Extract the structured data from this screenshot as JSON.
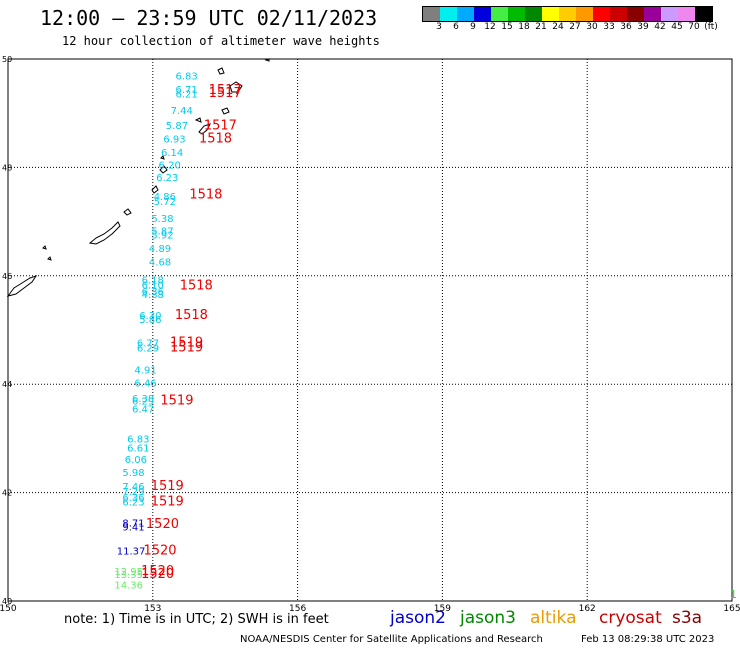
{
  "header": {
    "title": "12:00 — 23:59 UTC 02/11/2023",
    "subtitle": "12 hour collection of altimeter wave heights"
  },
  "colorbar": {
    "colors": [
      "#7f7f7f",
      "#00eeee",
      "#00aaff",
      "#0000dd",
      "#44ee44",
      "#00bb00",
      "#008800",
      "#ffff00",
      "#ffcc00",
      "#ff9900",
      "#ff0000",
      "#cc0000",
      "#880000",
      "#990099",
      "#cc99ff",
      "#ee88ee",
      "#000000"
    ],
    "ticks": [
      "3",
      "6",
      "9",
      "12",
      "15",
      "18",
      "21",
      "24",
      "27",
      "30",
      "33",
      "36",
      "39",
      "42",
      "45",
      "70",
      "(ft)"
    ]
  },
  "chart_data": {
    "type": "scatter",
    "title": "12 hour collection of altimeter wave heights",
    "xlim": [
      150,
      165
    ],
    "ylim": [
      40,
      50
    ],
    "x_ticks": [
      "150",
      "153",
      "156",
      "159",
      "162",
      "165"
    ],
    "y_ticks": [
      "40",
      "42",
      "44",
      "46",
      "48",
      "50"
    ],
    "grid": true,
    "series": [
      {
        "name": "jason3 (SWH ft)",
        "color_key": "swh",
        "points": [
          {
            "x": 153.7,
            "y": 49.7,
            "label": "6.83",
            "color": "#00ccee"
          },
          {
            "x": 153.7,
            "y": 49.45,
            "label": "6.71",
            "color": "#00ccee"
          },
          {
            "x": 153.7,
            "y": 49.36,
            "label": "6.21",
            "color": "#00ccee"
          },
          {
            "x": 153.6,
            "y": 49.06,
            "label": "7.44",
            "color": "#00ccee"
          },
          {
            "x": 153.5,
            "y": 48.78,
            "label": "5.87",
            "color": "#00ccee"
          },
          {
            "x": 153.45,
            "y": 48.53,
            "label": "6.93",
            "color": "#00ccee"
          },
          {
            "x": 153.4,
            "y": 48.28,
            "label": "6.14",
            "color": "#00ccee"
          },
          {
            "x": 153.35,
            "y": 48.05,
            "label": "6.20",
            "color": "#00ccee"
          },
          {
            "x": 153.3,
            "y": 47.82,
            "label": "6.23",
            "color": "#00ccee"
          },
          {
            "x": 153.25,
            "y": 47.47,
            "label": "4.86",
            "color": "#00ccee"
          },
          {
            "x": 153.25,
            "y": 47.38,
            "label": "5.72",
            "color": "#00ccee"
          },
          {
            "x": 153.2,
            "y": 47.07,
            "label": "5.38",
            "color": "#00ccee"
          },
          {
            "x": 153.2,
            "y": 46.84,
            "label": "5.87",
            "color": "#00ccee"
          },
          {
            "x": 153.2,
            "y": 46.76,
            "label": "5.92",
            "color": "#00ccee"
          },
          {
            "x": 153.15,
            "y": 46.51,
            "label": "4.89",
            "color": "#00ccee"
          },
          {
            "x": 153.15,
            "y": 46.26,
            "label": "4.68",
            "color": "#00ccee"
          },
          {
            "x": 153.0,
            "y": 45.93,
            "label": "6.18",
            "color": "#00ccee"
          },
          {
            "x": 153.0,
            "y": 45.84,
            "label": "6.10",
            "color": "#00ccee"
          },
          {
            "x": 153.0,
            "y": 45.72,
            "label": "6.36",
            "color": "#00ccee"
          },
          {
            "x": 153.0,
            "y": 45.66,
            "label": "4.38",
            "color": "#00ccee"
          },
          {
            "x": 152.95,
            "y": 45.28,
            "label": "6.30",
            "color": "#00ccee"
          },
          {
            "x": 152.95,
            "y": 45.2,
            "label": "5.86",
            "color": "#00ccee"
          },
          {
            "x": 152.9,
            "y": 44.77,
            "label": "6.77",
            "color": "#00ccee"
          },
          {
            "x": 152.9,
            "y": 44.68,
            "label": "6.29",
            "color": "#00ccee"
          },
          {
            "x": 152.85,
            "y": 44.27,
            "label": "4.91",
            "color": "#00ccee"
          },
          {
            "x": 152.85,
            "y": 44.03,
            "label": "6.46",
            "color": "#00ccee"
          },
          {
            "x": 152.8,
            "y": 43.75,
            "label": "6.38",
            "color": "#00ccee"
          },
          {
            "x": 152.8,
            "y": 43.7,
            "label": "6.29",
            "color": "#00ccee"
          },
          {
            "x": 152.8,
            "y": 43.55,
            "label": "6.47",
            "color": "#00ccee"
          },
          {
            "x": 152.7,
            "y": 43.0,
            "label": "6.83",
            "color": "#00ccee"
          },
          {
            "x": 152.7,
            "y": 42.83,
            "label": "6.61",
            "color": "#00ccee"
          },
          {
            "x": 152.65,
            "y": 42.62,
            "label": "6.06",
            "color": "#00ccee"
          },
          {
            "x": 152.6,
            "y": 42.38,
            "label": "5.98",
            "color": "#00ccee"
          },
          {
            "x": 152.6,
            "y": 42.12,
            "label": "7.46",
            "color": "#00ccee"
          },
          {
            "x": 152.6,
            "y": 42.03,
            "label": "7.29",
            "color": "#00ccee"
          },
          {
            "x": 152.6,
            "y": 41.92,
            "label": "6.36",
            "color": "#00ccee"
          },
          {
            "x": 152.6,
            "y": 41.84,
            "label": "6.23",
            "color": "#00ccee"
          },
          {
            "x": 152.6,
            "y": 41.45,
            "label": "8.71",
            "color": "#0000cc"
          },
          {
            "x": 152.6,
            "y": 41.37,
            "label": "9.41",
            "color": "#0000cc"
          },
          {
            "x": 152.55,
            "y": 40.93,
            "label": "11.37",
            "color": "#0000cc"
          },
          {
            "x": 152.5,
            "y": 40.55,
            "label": "12.95",
            "color": "#66ee66"
          },
          {
            "x": 152.5,
            "y": 40.5,
            "label": "13.35",
            "color": "#66ee66"
          },
          {
            "x": 152.5,
            "y": 40.3,
            "label": "14.36",
            "color": "#66ee66"
          }
        ]
      },
      {
        "name": "time labels",
        "color_key": "time",
        "points": [
          {
            "x": 154.5,
            "y": 49.43,
            "label": "1517"
          },
          {
            "x": 154.5,
            "y": 49.37,
            "label": "1517"
          },
          {
            "x": 154.4,
            "y": 48.77,
            "label": "1517"
          },
          {
            "x": 154.3,
            "y": 48.53,
            "label": "1518"
          },
          {
            "x": 154.1,
            "y": 47.5,
            "label": "1518"
          },
          {
            "x": 153.9,
            "y": 45.82,
            "label": "1518"
          },
          {
            "x": 153.8,
            "y": 45.28,
            "label": "1518"
          },
          {
            "x": 153.7,
            "y": 44.77,
            "label": "1519"
          },
          {
            "x": 153.7,
            "y": 44.68,
            "label": "1519"
          },
          {
            "x": 153.5,
            "y": 43.7,
            "label": "1519"
          },
          {
            "x": 153.3,
            "y": 42.12,
            "label": "1519"
          },
          {
            "x": 153.3,
            "y": 41.84,
            "label": "1519"
          },
          {
            "x": 153.2,
            "y": 41.42,
            "label": "1520"
          },
          {
            "x": 153.15,
            "y": 40.93,
            "label": "1520"
          },
          {
            "x": 153.1,
            "y": 40.55,
            "label": "1520"
          },
          {
            "x": 153.1,
            "y": 40.5,
            "label": "1520"
          }
        ]
      }
    ]
  },
  "legend": {
    "note": "note:  1) Time is in UTC; 2) SWH is in feet",
    "items": [
      {
        "label": "jason2",
        "color": "#0000cc"
      },
      {
        "label": "jason3",
        "color": "#008800"
      },
      {
        "label": "altika",
        "color": "#ee9900"
      },
      {
        "label": "cryosat",
        "color": "#cc0000"
      },
      {
        "label": "s3a",
        "color": "#880000"
      }
    ]
  },
  "footer": {
    "credit": "NOAA/NESDIS Center for Satellite Applications and Research",
    "timestamp": "Feb 13 08:29:38 UTC 2023"
  },
  "corner_mark": "1"
}
